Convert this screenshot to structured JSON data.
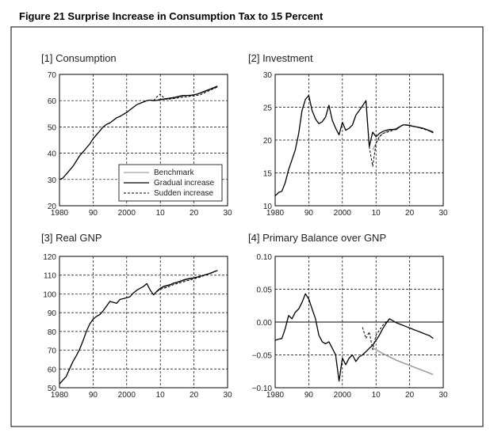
{
  "figure": {
    "title": "Figure 21   Surprise Increase in Consumption Tax to 15 Percent"
  },
  "legend": [
    {
      "label": "Benchmark",
      "style": "thin-gray"
    },
    {
      "label": "Gradual increase",
      "style": "solid-black"
    },
    {
      "label": "Sudden increase",
      "style": "dashed-black"
    }
  ],
  "colors": {
    "frame": "#000000",
    "benchmark": "#8c8c8c",
    "gradual": "#000000",
    "sudden": "#000000",
    "sudden_low": "#a0a0a0"
  },
  "chart_data": [
    {
      "type": "line",
      "title": "[1] Consumption",
      "xlim": [
        1980,
        2030
      ],
      "ylim": [
        20,
        70
      ],
      "xticks": [
        1980,
        1990,
        2000,
        2010,
        2020,
        2030
      ],
      "xtick_labels": [
        "1980",
        "90",
        "2000",
        "10",
        "20",
        "30"
      ],
      "yticks": [
        20,
        30,
        40,
        50,
        60,
        70
      ],
      "ytick_labels": [
        "20",
        "30",
        "40",
        "50",
        "60",
        "70"
      ],
      "grid": true,
      "legend_position": "bottom-right",
      "series": [
        {
          "name": "Benchmark",
          "x": [
            2008,
            2010,
            2012,
            2014,
            2016,
            2018,
            2020,
            2022,
            2024,
            2027
          ],
          "y": [
            60.0,
            60.2,
            60.5,
            60.8,
            61.5,
            62.0,
            62.3,
            62.8,
            63.8,
            65.2
          ]
        },
        {
          "name": "Gradual increase",
          "x": [
            1980,
            1981,
            1982,
            1983,
            1984,
            1985,
            1986,
            1987,
            1988,
            1989,
            1990,
            1991,
            1992,
            1993,
            1994,
            1995,
            1996,
            1997,
            1998,
            1999,
            2000,
            2001,
            2002,
            2003,
            2004,
            2005,
            2006,
            2007,
            2008,
            2009,
            2010,
            2011,
            2012,
            2013,
            2014,
            2015,
            2016,
            2017,
            2018,
            2019,
            2020,
            2021,
            2022,
            2023,
            2024,
            2025,
            2026,
            2027
          ],
          "y": [
            30.0,
            30.5,
            32.0,
            33.5,
            35.0,
            37.0,
            39.0,
            40.5,
            42.0,
            43.5,
            45.5,
            47.0,
            48.5,
            50.0,
            51.0,
            51.5,
            52.5,
            53.5,
            54.0,
            54.8,
            55.5,
            56.5,
            57.5,
            58.5,
            59.0,
            59.5,
            60.0,
            60.2,
            60.0,
            60.1,
            60.5,
            60.6,
            60.8,
            61.0,
            61.2,
            61.5,
            61.8,
            62.0,
            62.0,
            62.0,
            62.2,
            62.5,
            63.0,
            63.5,
            64.0,
            64.5,
            65.0,
            65.5
          ]
        },
        {
          "name": "Sudden increase",
          "x": [
            2008,
            2009,
            2010,
            2011,
            2012,
            2014,
            2016,
            2018,
            2020,
            2022,
            2024,
            2027
          ],
          "y": [
            60.0,
            61.5,
            62.5,
            61.2,
            60.5,
            60.8,
            61.2,
            61.5,
            61.8,
            62.3,
            63.5,
            65.2
          ]
        }
      ]
    },
    {
      "type": "line",
      "title": "[2] Investment",
      "xlim": [
        1980,
        2030
      ],
      "ylim": [
        10,
        30
      ],
      "xticks": [
        1980,
        1990,
        2000,
        2010,
        2020,
        2030
      ],
      "xtick_labels": [
        "1980",
        "90",
        "2000",
        "10",
        "20",
        "30"
      ],
      "yticks": [
        10,
        15,
        20,
        25,
        30
      ],
      "ytick_labels": [
        "10",
        "15",
        "20",
        "25",
        "30"
      ],
      "grid": true,
      "series": [
        {
          "name": "Benchmark",
          "x": [
            2009,
            2010,
            2011,
            2012,
            2014,
            2016,
            2018,
            2020,
            2022,
            2024,
            2027
          ],
          "y": [
            18.5,
            19.5,
            20.5,
            21.0,
            21.5,
            21.8,
            22.3,
            22.3,
            22.0,
            21.8,
            21.3
          ]
        },
        {
          "name": "Gradual increase",
          "x": [
            1980,
            1981,
            1982,
            1983,
            1984,
            1985,
            1986,
            1987,
            1988,
            1989,
            1990,
            1991,
            1992,
            1993,
            1994,
            1995,
            1996,
            1997,
            1998,
            1999,
            2000,
            2001,
            2002,
            2003,
            2004,
            2005,
            2006,
            2007,
            2008,
            2009,
            2010,
            2011,
            2012,
            2013,
            2014,
            2015,
            2016,
            2017,
            2018,
            2019,
            2020,
            2021,
            2022,
            2023,
            2024,
            2025,
            2026,
            2027
          ],
          "y": [
            11.5,
            12.0,
            12.2,
            13.5,
            15.5,
            17.0,
            18.5,
            21.0,
            24.5,
            26.2,
            26.8,
            24.5,
            23.2,
            22.5,
            22.8,
            23.5,
            25.3,
            23.0,
            21.8,
            20.8,
            22.7,
            21.5,
            21.8,
            22.3,
            23.8,
            24.5,
            25.2,
            26.0,
            19.0,
            21.2,
            20.5,
            21.0,
            21.3,
            21.5,
            21.6,
            21.6,
            21.6,
            22.0,
            22.3,
            22.3,
            22.2,
            22.1,
            22.0,
            21.9,
            21.8,
            21.6,
            21.4,
            21.1
          ]
        },
        {
          "name": "Sudden increase",
          "x": [
            2008,
            2009,
            2010,
            2011,
            2012,
            2014,
            2016,
            2018,
            2020,
            2022,
            2024,
            2027
          ],
          "y": [
            19.0,
            16.0,
            19.5,
            20.5,
            21.0,
            21.3,
            21.7,
            22.3,
            22.2,
            22.0,
            21.7,
            21.2
          ]
        }
      ]
    },
    {
      "type": "line",
      "title": "[3] Real GNP",
      "xlim": [
        1980,
        2030
      ],
      "ylim": [
        50,
        120
      ],
      "xticks": [
        1980,
        1990,
        2000,
        2010,
        2020,
        2030
      ],
      "xtick_labels": [
        "1980",
        "90",
        "2000",
        "10",
        "20",
        "30"
      ],
      "yticks": [
        50,
        60,
        70,
        80,
        90,
        100,
        110,
        120
      ],
      "ytick_labels": [
        "50",
        "60",
        "70",
        "80",
        "90",
        "100",
        "110",
        "120"
      ],
      "grid": true,
      "series": [
        {
          "name": "Benchmark",
          "x": [
            2009,
            2010,
            2012,
            2014,
            2016,
            2018,
            2020,
            2022,
            2024,
            2027
          ],
          "y": [
            101.0,
            103.0,
            104.0,
            105.5,
            106.5,
            107.5,
            108.5,
            109.5,
            110.5,
            112.5
          ]
        },
        {
          "name": "Gradual increase",
          "x": [
            1980,
            1981,
            1982,
            1983,
            1984,
            1985,
            1986,
            1987,
            1988,
            1989,
            1990,
            1991,
            1992,
            1993,
            1994,
            1995,
            1996,
            1997,
            1998,
            1999,
            2000,
            2001,
            2002,
            2003,
            2004,
            2005,
            2006,
            2007,
            2008,
            2009,
            2010,
            2011,
            2012,
            2013,
            2014,
            2015,
            2016,
            2017,
            2018,
            2019,
            2020,
            2021,
            2022,
            2023,
            2024,
            2025,
            2026,
            2027
          ],
          "y": [
            52.0,
            54.0,
            56.0,
            60.0,
            64.0,
            67.0,
            70.5,
            75.0,
            80.0,
            84.0,
            86.5,
            88.0,
            89.0,
            91.0,
            93.5,
            96.0,
            95.5,
            95.0,
            97.0,
            97.5,
            98.0,
            98.5,
            100.5,
            102.0,
            103.0,
            104.0,
            105.5,
            102.0,
            99.5,
            101.5,
            103.0,
            104.0,
            104.5,
            105.0,
            105.8,
            106.2,
            106.8,
            107.5,
            108.0,
            108.3,
            108.5,
            109.0,
            109.5,
            110.0,
            110.5,
            111.0,
            111.8,
            112.5
          ]
        },
        {
          "name": "Sudden increase",
          "x": [
            2009,
            2010,
            2012,
            2014,
            2016,
            2018,
            2020,
            2022,
            2024,
            2027
          ],
          "y": [
            101.5,
            102.5,
            103.5,
            105.0,
            106.0,
            107.0,
            108.0,
            109.0,
            110.5,
            112.5
          ]
        }
      ]
    },
    {
      "type": "line",
      "title": "[4] Primary Balance over GNP",
      "xlim": [
        1980,
        2030
      ],
      "ylim": [
        -0.1,
        0.1
      ],
      "xticks": [
        1980,
        1990,
        2000,
        2010,
        2020,
        2030
      ],
      "xtick_labels": [
        "1980",
        "90",
        "2000",
        "10",
        "20",
        "30"
      ],
      "yticks": [
        -0.1,
        -0.05,
        0.0,
        0.05,
        0.1
      ],
      "ytick_labels": [
        "−0.10",
        "−0.05",
        "0.00",
        "0.05",
        "0.10"
      ],
      "grid": true,
      "zero_line": true,
      "series": [
        {
          "name": "Benchmark",
          "x": [
            2009,
            2010,
            2012,
            2014,
            2016,
            2018,
            2020,
            2022,
            2024,
            2027
          ],
          "y": [
            -0.04,
            -0.042,
            -0.048,
            -0.053,
            -0.058,
            -0.062,
            -0.066,
            -0.07,
            -0.074,
            -0.08
          ]
        },
        {
          "name": "Gradual increase",
          "x": [
            1980,
            1981,
            1982,
            1983,
            1984,
            1985,
            1986,
            1987,
            1988,
            1989,
            1990,
            1991,
            1992,
            1993,
            1994,
            1995,
            1996,
            1997,
            1998,
            1999,
            2000,
            2001,
            2002,
            2003,
            2004,
            2005,
            2006,
            2007,
            2008,
            2009,
            2010,
            2011,
            2012,
            2013,
            2014,
            2015,
            2016,
            2017,
            2018,
            2019,
            2020,
            2021,
            2022,
            2023,
            2024,
            2025,
            2026,
            2027
          ],
          "y": [
            -0.028,
            -0.026,
            -0.025,
            -0.01,
            0.01,
            0.005,
            0.015,
            0.02,
            0.03,
            0.043,
            0.035,
            0.02,
            0.005,
            -0.02,
            -0.03,
            -0.033,
            -0.03,
            -0.04,
            -0.05,
            -0.09,
            -0.055,
            -0.065,
            -0.055,
            -0.05,
            -0.06,
            -0.053,
            -0.05,
            -0.045,
            -0.04,
            -0.035,
            -0.028,
            -0.02,
            -0.01,
            -0.002,
            0.005,
            0.002,
            -0.001,
            -0.003,
            -0.005,
            -0.007,
            -0.009,
            -0.011,
            -0.013,
            -0.015,
            -0.017,
            -0.019,
            -0.021,
            -0.025
          ]
        },
        {
          "name": "Sudden increase",
          "x": [
            2006,
            2007,
            2008,
            2009,
            2010,
            2012,
            2014
          ],
          "y": [
            -0.008,
            -0.025,
            -0.015,
            -0.042,
            -0.02,
            -0.005,
            0.005
          ]
        }
      ]
    }
  ]
}
